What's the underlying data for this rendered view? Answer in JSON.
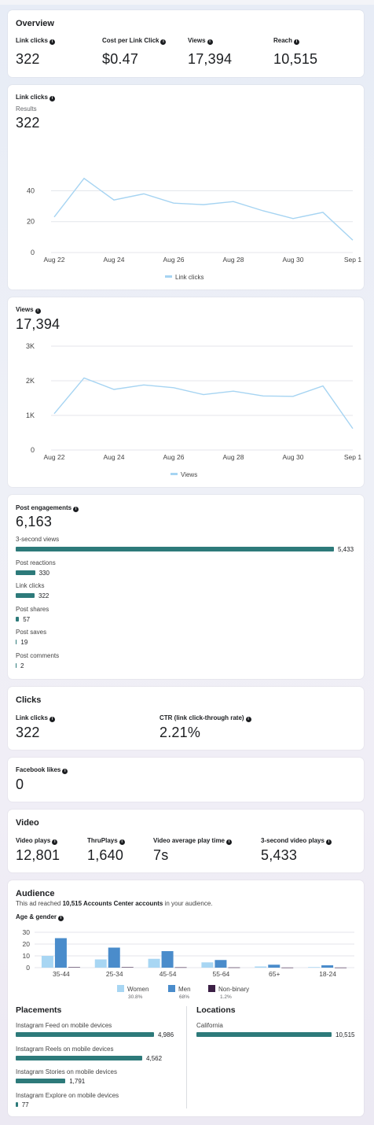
{
  "overview": {
    "title": "Overview",
    "metrics": [
      {
        "label": "Link clicks",
        "value": "322"
      },
      {
        "label": "Cost per Link Click",
        "value": "$0.47"
      },
      {
        "label": "Views",
        "value": "17,394"
      },
      {
        "label": "Reach",
        "value": "10,515"
      }
    ]
  },
  "link_clicks_card": {
    "title": "Link clicks",
    "sub": "Results",
    "value": "322",
    "legend": "Link clicks"
  },
  "views_card": {
    "title": "Views",
    "value": "17,394",
    "legend": "Views"
  },
  "engagements": {
    "title": "Post engagements",
    "value": "6,163",
    "items": [
      {
        "label": "3-second views",
        "value": "5,433",
        "amount": 5433
      },
      {
        "label": "Post reactions",
        "value": "330",
        "amount": 330
      },
      {
        "label": "Link clicks",
        "value": "322",
        "amount": 322
      },
      {
        "label": "Post shares",
        "value": "57",
        "amount": 57
      },
      {
        "label": "Post saves",
        "value": "19",
        "amount": 19
      },
      {
        "label": "Post comments",
        "value": "2",
        "amount": 2
      }
    ]
  },
  "clicks": {
    "title": "Clicks",
    "metrics": [
      {
        "label": "Link clicks",
        "value": "322"
      },
      {
        "label": "CTR (link click-through rate)",
        "value": "2.21%"
      }
    ]
  },
  "facebook_likes": {
    "label": "Facebook likes",
    "value": "0"
  },
  "video": {
    "title": "Video",
    "metrics": [
      {
        "label": "Video plays",
        "value": "12,801"
      },
      {
        "label": "ThruPlays",
        "value": "1,640"
      },
      {
        "label": "Video average play time",
        "value": "7s"
      },
      {
        "label": "3-second video plays",
        "value": "5,433"
      }
    ]
  },
  "audience": {
    "title": "Audience",
    "desc_pre": "This ad reached ",
    "desc_bold": "10,515 Accounts Center accounts",
    "desc_post": " in your audience.",
    "age_gender_label": "Age & gender",
    "legend": [
      {
        "name": "Women",
        "pct": "30.8%",
        "color": "#a8d6f3"
      },
      {
        "name": "Men",
        "pct": "68%",
        "color": "#4a8ccb"
      },
      {
        "name": "Non-binary",
        "pct": "1.2%",
        "color": "#3b1f45"
      }
    ]
  },
  "placements": {
    "title": "Placements",
    "items": [
      {
        "label": "Instagram Feed on mobile devices",
        "value": "4,986",
        "amount": 4986
      },
      {
        "label": "Instagram Reels on mobile devices",
        "value": "4,562",
        "amount": 4562
      },
      {
        "label": "Instagram Stories on mobile devices",
        "value": "1,791",
        "amount": 1791
      },
      {
        "label": "Instagram Explore on mobile devices",
        "value": "77",
        "amount": 77
      }
    ]
  },
  "locations": {
    "title": "Locations",
    "items": [
      {
        "label": "California",
        "value": "10,515",
        "amount": 10515
      }
    ]
  },
  "colors": {
    "line": "#a6d4f2",
    "bar": "#2d7a7a",
    "women": "#a8d6f3",
    "men": "#4a8ccb",
    "nonbinary": "#3b1f45"
  },
  "chart_data": [
    {
      "type": "line",
      "title": "Link clicks",
      "x": [
        "Aug 22",
        "Aug 23",
        "Aug 24",
        "Aug 25",
        "Aug 26",
        "Aug 27",
        "Aug 28",
        "Aug 29",
        "Aug 30",
        "Aug 31",
        "Sep 1"
      ],
      "x_tick_labels": [
        "Aug 22",
        "Aug 24",
        "Aug 26",
        "Aug 28",
        "Aug 30",
        "Sep 1"
      ],
      "series": [
        {
          "name": "Link clicks",
          "values": [
            23,
            48,
            34,
            38,
            32,
            31,
            33,
            27,
            22,
            26,
            8
          ]
        }
      ],
      "y_ticks": [
        "0",
        "20",
        "40"
      ],
      "ylim": [
        0,
        55
      ],
      "grid": true,
      "legend": "bottom"
    },
    {
      "type": "line",
      "title": "Views",
      "x": [
        "Aug 22",
        "Aug 23",
        "Aug 24",
        "Aug 25",
        "Aug 26",
        "Aug 27",
        "Aug 28",
        "Aug 29",
        "Aug 30",
        "Aug 31",
        "Sep 1"
      ],
      "x_tick_labels": [
        "Aug 22",
        "Aug 24",
        "Aug 26",
        "Aug 28",
        "Aug 30",
        "Sep 1"
      ],
      "series": [
        {
          "name": "Views",
          "values": [
            1050,
            2080,
            1750,
            1880,
            1800,
            1600,
            1700,
            1560,
            1550,
            1850,
            620
          ]
        }
      ],
      "y_ticks": [
        "0",
        "1K",
        "2K",
        "3K"
      ],
      "ylim": [
        0,
        3000
      ],
      "grid": true,
      "legend": "bottom"
    },
    {
      "type": "bar",
      "title": "Age & gender",
      "categories": [
        "35-44",
        "25-34",
        "45-54",
        "55-64",
        "65+",
        "18-24"
      ],
      "series": [
        {
          "name": "Women",
          "values": [
            10,
            7,
            7.5,
            4.5,
            1,
            0.5
          ]
        },
        {
          "name": "Men",
          "values": [
            25,
            17,
            14,
            6.5,
            2.5,
            2
          ]
        },
        {
          "name": "Non-binary",
          "values": [
            0.4,
            0.4,
            0.3,
            0.2,
            0.1,
            0.1
          ]
        }
      ],
      "y_ticks": [
        "0",
        "10",
        "20",
        "30"
      ],
      "ylim": [
        0,
        30
      ],
      "grid": true,
      "legend": "bottom"
    }
  ]
}
